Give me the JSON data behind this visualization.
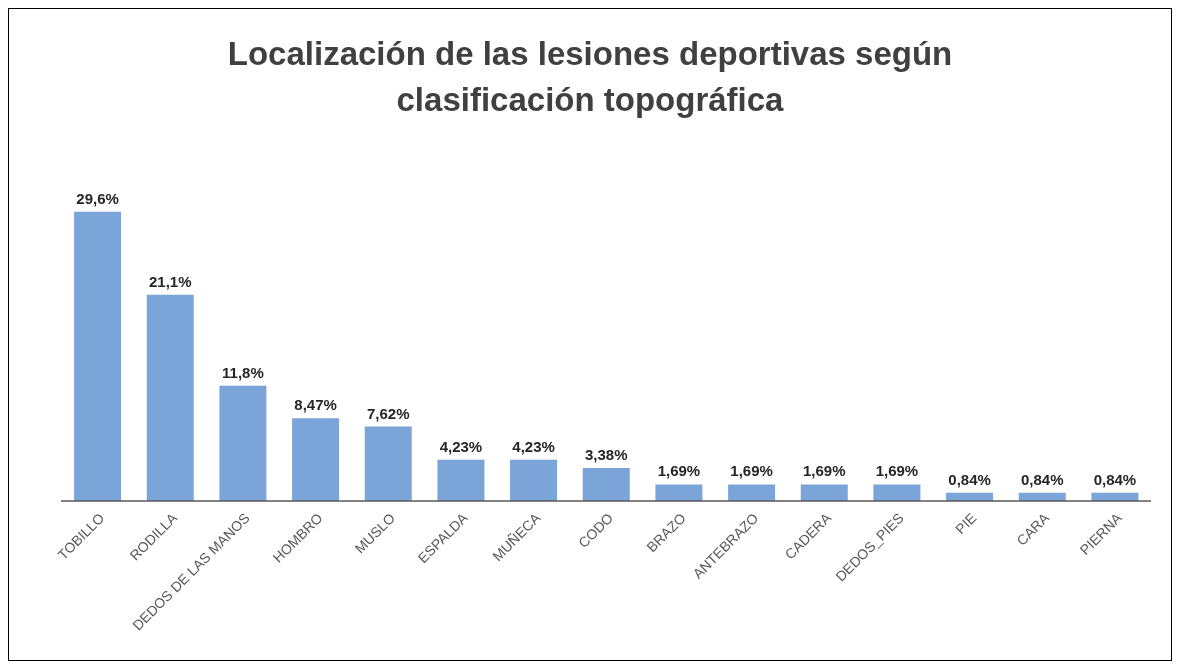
{
  "chart_data": {
    "type": "bar",
    "title": "Localización de las lesiones deportivas según clasificación topográfica",
    "categories": [
      "TOBILLO",
      "RODILLA",
      "DEDOS DE LAS MANOS",
      "HOMBRO",
      "MUSLO",
      "ESPALDA",
      "MUÑECA",
      "CODO",
      "BRAZO",
      "ANTEBRAZO",
      "CADERA",
      "DEDOS_PIES",
      "PIE",
      "CARA",
      "PIERNA"
    ],
    "values": [
      29.6,
      21.1,
      11.8,
      8.47,
      7.62,
      4.23,
      4.23,
      3.38,
      1.69,
      1.69,
      1.69,
      1.69,
      0.84,
      0.84,
      0.84
    ],
    "value_labels": [
      "29,6%",
      "21,1%",
      "11,8%",
      "8,47%",
      "7,62%",
      "4,23%",
      "4,23%",
      "3,38%",
      "1,69%",
      "1,69%",
      "1,69%",
      "1,69%",
      "0,84%",
      "0,84%",
      "0,84%"
    ],
    "color": "#7ba4d8",
    "tick_labels": "x"
  }
}
